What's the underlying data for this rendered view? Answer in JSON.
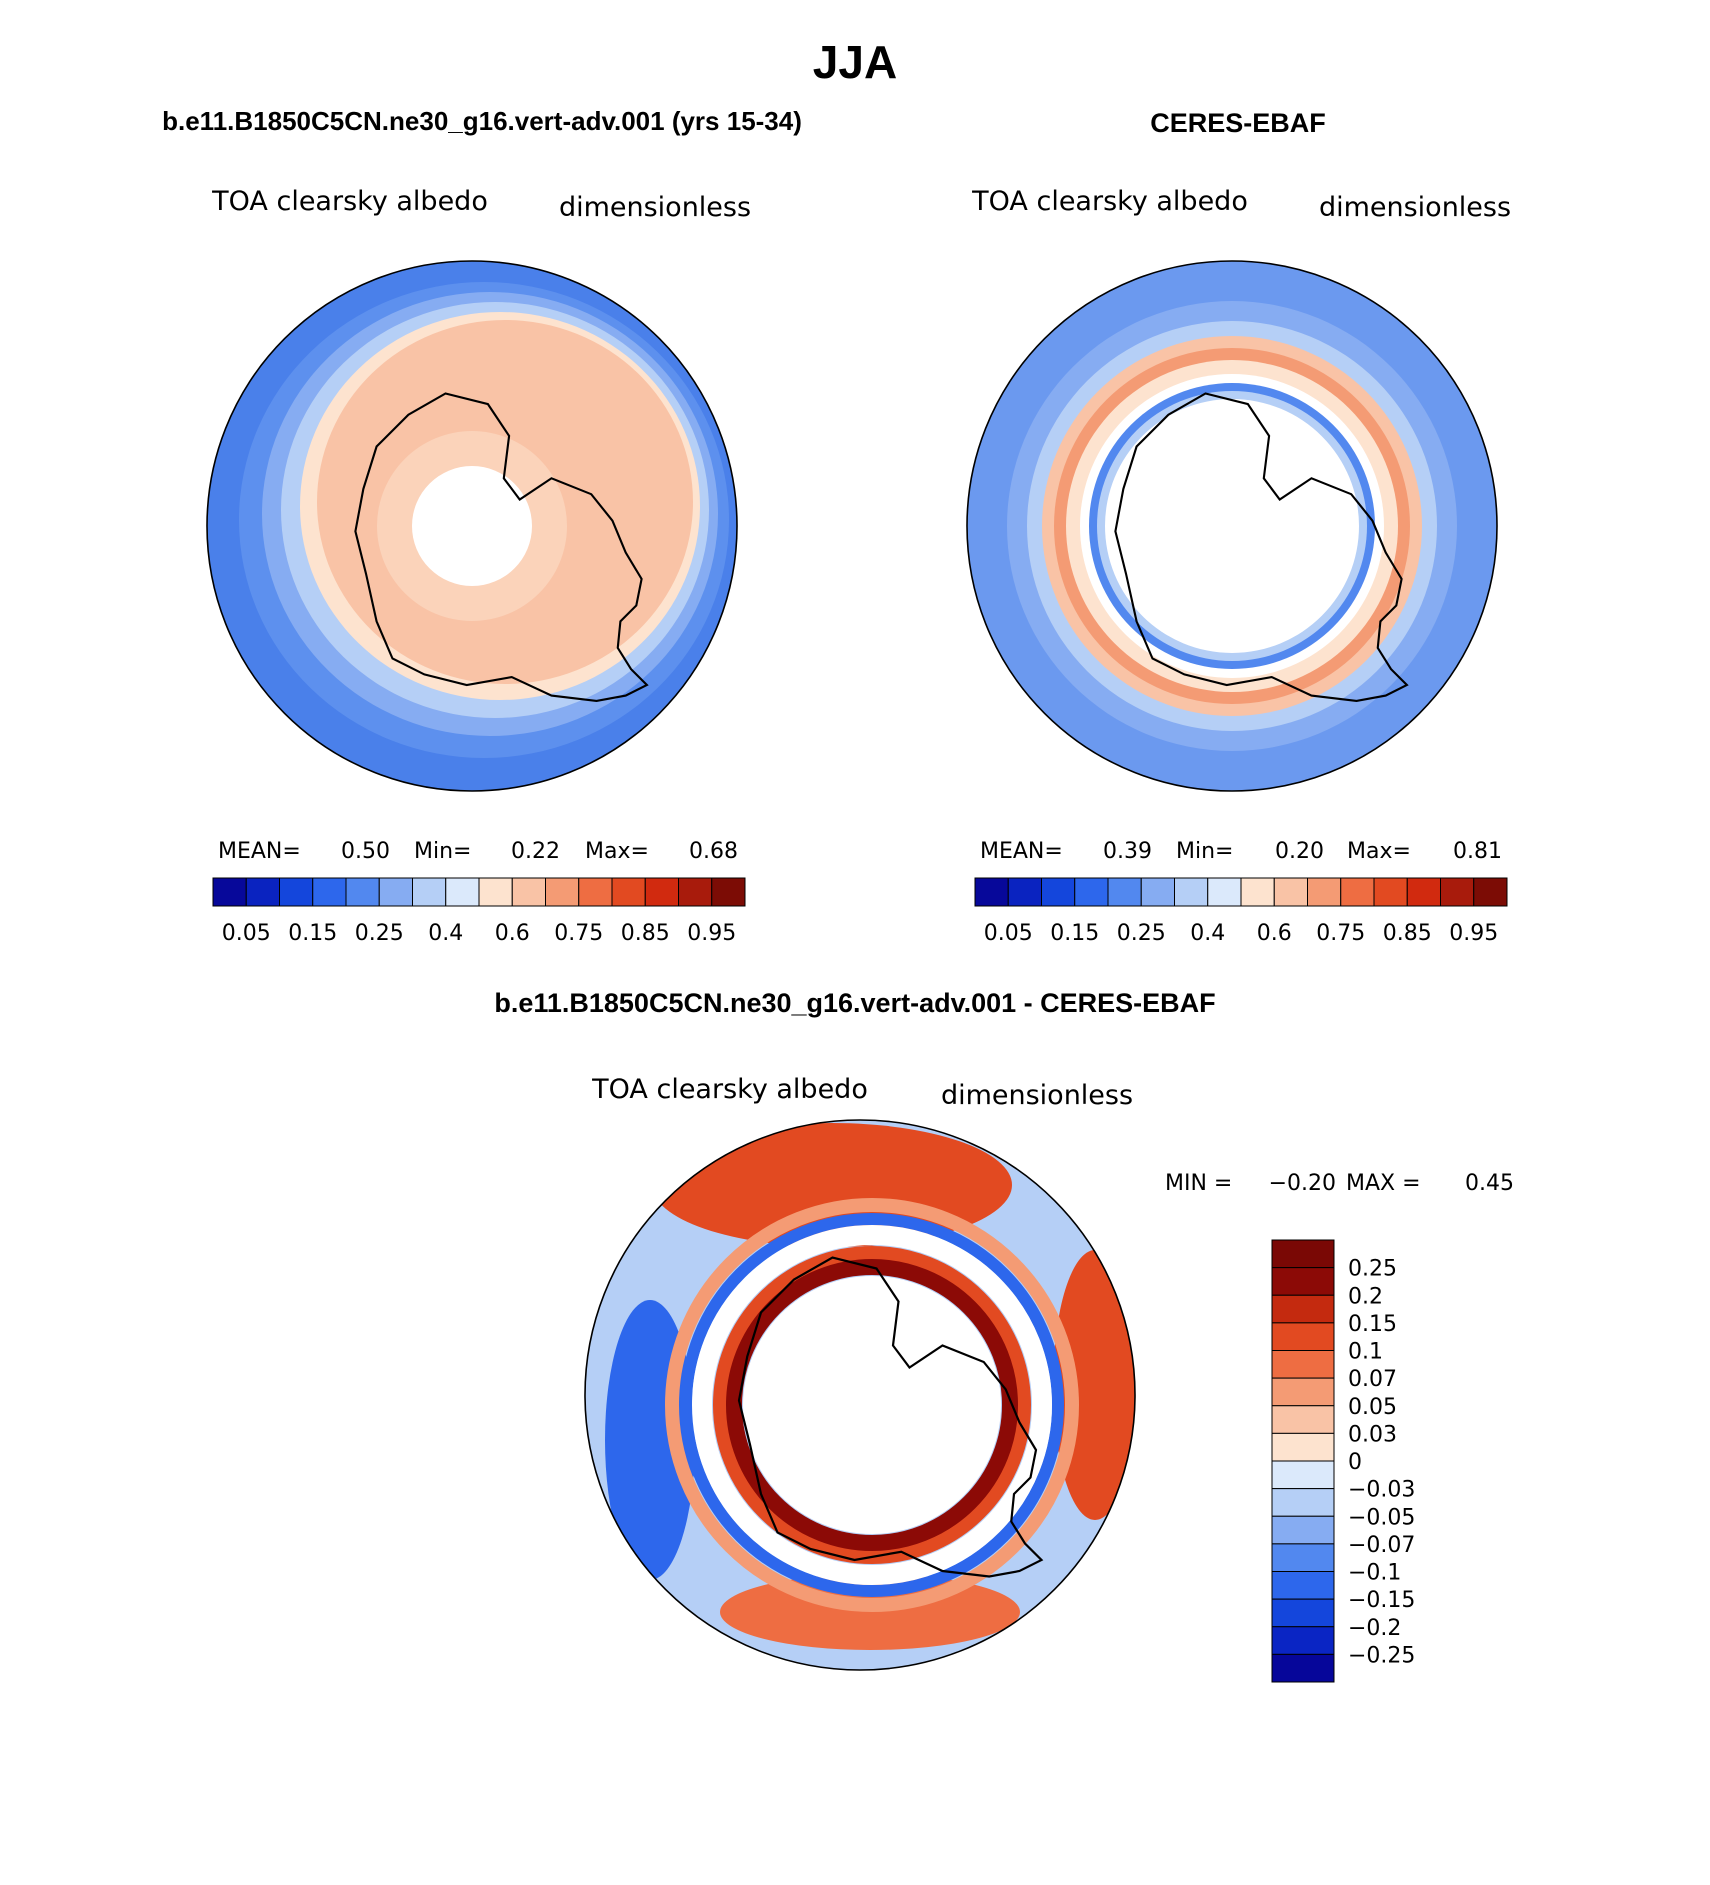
{
  "figure": {
    "season": "JJA"
  },
  "palettes": {
    "abs": [
      "#07089a",
      "#0a23c0",
      "#1446dc",
      "#2d67ec",
      "#5288ef",
      "#86acf2",
      "#b5cff6",
      "#dbe9fb",
      "#fde3cf",
      "#f9c3a6",
      "#f49b74",
      "#ee6d42",
      "#e24a21",
      "#d12a0f",
      "#a81b0c",
      "#7c0c05"
    ],
    "diff": [
      "#06069a",
      "#0a25c4",
      "#1446dc",
      "#2d67ec",
      "#5288ef",
      "#86acf2",
      "#b5cff6",
      "#dbe9fb",
      "#fde3cf",
      "#f9c3a6",
      "#f49b74",
      "#ee6d42",
      "#e24a21",
      "#c42a0f",
      "#8c0a06"
    ]
  },
  "panels": {
    "model": {
      "title": "b.e11.B1850C5CN.ne30_g16.vert-adv.001 (yrs 15-34)",
      "variable": "TOA clearsky albedo",
      "units": "dimensionless",
      "stats": {
        "mean_label": "MEAN=",
        "mean": "0.50",
        "min_label": "Min=",
        "min": "0.22",
        "max_label": "Max=",
        "max": "0.68"
      },
      "colorbar_labels": [
        "0.05",
        "0.15",
        "0.25",
        "0.4",
        "0.6",
        "0.75",
        "0.85",
        "0.95"
      ]
    },
    "obs": {
      "title": "CERES-EBAF",
      "variable": "TOA clearsky albedo",
      "units": "dimensionless",
      "stats": {
        "mean_label": "MEAN=",
        "mean": "0.39",
        "min_label": "Min=",
        "min": "0.20",
        "max_label": "Max=",
        "max": "0.81"
      },
      "colorbar_labels": [
        "0.05",
        "0.15",
        "0.25",
        "0.4",
        "0.6",
        "0.75",
        "0.85",
        "0.95"
      ]
    },
    "diff": {
      "title": "b.e11.B1850C5CN.ne30_g16.vert-adv.001 - CERES-EBAF",
      "variable": "TOA clearsky albedo",
      "units": "dimensionless",
      "stats": {
        "min_label": "MIN =",
        "min": "−0.20",
        "max_label": "MAX =",
        "max": "0.45"
      },
      "colorbar_labels": [
        "0.25",
        "0.2",
        "0.15",
        "0.1",
        "0.07",
        "0.05",
        "0.03",
        "0",
        "−0.03",
        "−0.05",
        "−0.07",
        "−0.1",
        "−0.15",
        "−0.2",
        "−0.25"
      ]
    }
  }
}
